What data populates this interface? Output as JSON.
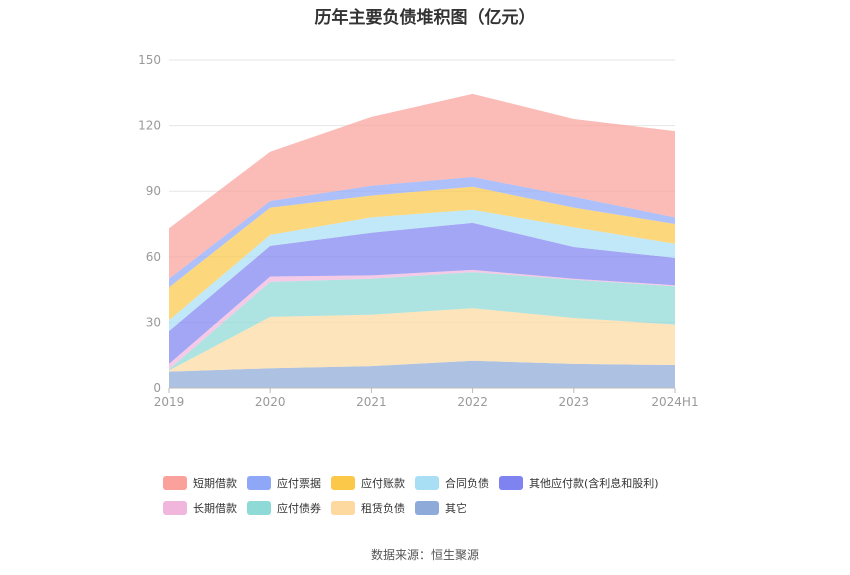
{
  "title": "历年主要负债堆积图（亿元）",
  "source": "数据来源：恒生聚源",
  "colors": {
    "axis": "#bbbbbb",
    "grid": "#e6e6e6",
    "tick_text": "#999999"
  },
  "chart_data": {
    "type": "area",
    "stacked": true,
    "categories": [
      "2019",
      "2020",
      "2021",
      "2022",
      "2023",
      "2024H1"
    ],
    "ylim": [
      0,
      150
    ],
    "yticks": [
      0,
      30,
      60,
      90,
      120,
      150
    ],
    "grid": true,
    "legend_position": "bottom",
    "series": [
      {
        "name": "其它",
        "color": "#8eaad8",
        "values": [
          7.5,
          9,
          10,
          12.5,
          11,
          10.5
        ]
      },
      {
        "name": "租赁负债",
        "color": "#fdd9a0",
        "values": [
          0.5,
          23.5,
          23.5,
          24,
          21,
          18.5
        ]
      },
      {
        "name": "应付债券",
        "color": "#8ddad6",
        "values": [
          0.5,
          16,
          16.5,
          16.5,
          17.5,
          17.5
        ]
      },
      {
        "name": "长期借款",
        "color": "#f0b6dc",
        "values": [
          2.5,
          2.5,
          1.5,
          1,
          0.5,
          0.5
        ]
      },
      {
        "name": "其他应付款(含利息和股利)",
        "color": "#7f83f0",
        "values": [
          15,
          14,
          19.5,
          21.5,
          14.5,
          12.5
        ]
      },
      {
        "name": "合同负债",
        "color": "#a9dff5",
        "values": [
          5,
          5,
          7,
          6,
          9,
          6.5
        ]
      },
      {
        "name": "应付账款",
        "color": "#fbc84a",
        "values": [
          15,
          12.5,
          10,
          10.5,
          9,
          9
        ]
      },
      {
        "name": "应付票据",
        "color": "#8fa7f7",
        "values": [
          4,
          3,
          4.5,
          4.5,
          5,
          3
        ]
      },
      {
        "name": "短期借款",
        "color": "#f9a19a",
        "values": [
          23,
          22.5,
          31.5,
          38,
          35.5,
          39.5
        ]
      }
    ],
    "legend_rows": [
      [
        "短期借款",
        "应付票据",
        "应付账款",
        "合同负债",
        "其他应付款(含利息和股利)"
      ],
      [
        "长期借款",
        "应付债券",
        "租赁负债",
        "其它"
      ]
    ]
  }
}
